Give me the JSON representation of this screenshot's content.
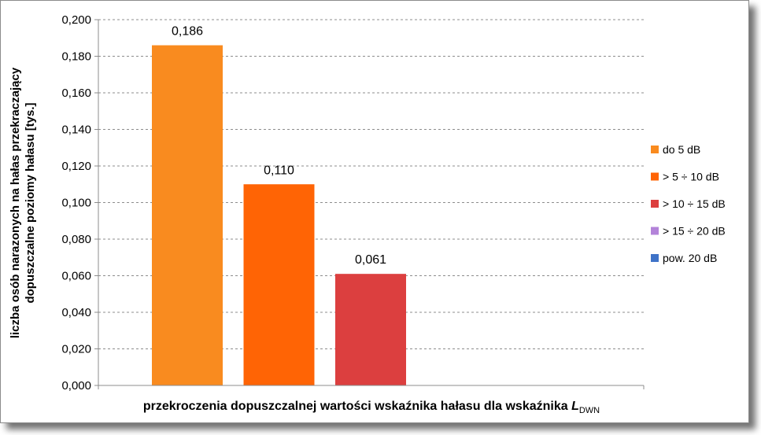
{
  "chart_data": {
    "type": "bar",
    "ylabel_line1": "liczba osób narazonych na hałas przekraczający",
    "ylabel_line2": "dopuszczalne poziomy hałasu [tys.]",
    "xlabel_main": "przekroczenia dopuszczalnej wartości wskaźnika hałasu dla wskaźnika ",
    "xlabel_italic": "L",
    "xlabel_sub": "DWN",
    "ylim": [
      0,
      0.2
    ],
    "yticks": [
      "0,000",
      "0,020",
      "0,040",
      "0,060",
      "0,080",
      "0,100",
      "0,120",
      "0,140",
      "0,160",
      "0,180",
      "0,200"
    ],
    "grid": true,
    "legend_position": "right",
    "series": [
      {
        "name": "do 5 dB",
        "value": 0.186,
        "label": "0,186",
        "color": "#F98B1F"
      },
      {
        "name": "> 5 ÷ 10 dB",
        "value": 0.11,
        "label": "0,110",
        "color": "#FF6405"
      },
      {
        "name": "> 10 ÷ 15 dB",
        "value": 0.061,
        "label": "0,061",
        "color": "#DC3F3F"
      },
      {
        "name": "> 15 ÷ 20 dB",
        "value": 0,
        "label": "",
        "color": "#B383D9"
      },
      {
        "name": "pow.  20 dB",
        "value": 0,
        "label": "",
        "color": "#3F73C8"
      }
    ]
  }
}
